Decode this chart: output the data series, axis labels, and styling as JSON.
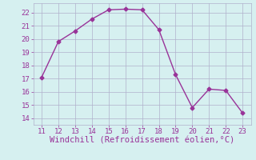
{
  "x": [
    11,
    12,
    13,
    14,
    15,
    16,
    17,
    18,
    19,
    20,
    21,
    22,
    23
  ],
  "y": [
    17.1,
    19.8,
    20.6,
    21.5,
    22.2,
    22.25,
    22.2,
    20.7,
    17.3,
    14.8,
    16.2,
    16.1,
    14.4
  ],
  "line_color": "#993399",
  "marker": "D",
  "marker_size": 2.5,
  "bg_color": "#d6f0f0",
  "grid_color": "#b0b0cc",
  "xlabel": "Windchill (Refroidissement éolien,°C)",
  "xlabel_color": "#993399",
  "xlim": [
    10.5,
    23.5
  ],
  "ylim": [
    13.5,
    22.7
  ],
  "xticks": [
    11,
    12,
    13,
    14,
    15,
    16,
    17,
    18,
    19,
    20,
    21,
    22,
    23
  ],
  "yticks": [
    14,
    15,
    16,
    17,
    18,
    19,
    20,
    21,
    22
  ],
  "tick_color": "#993399",
  "tick_fontsize": 6.5,
  "xlabel_fontsize": 7.5,
  "line_width": 1.0
}
